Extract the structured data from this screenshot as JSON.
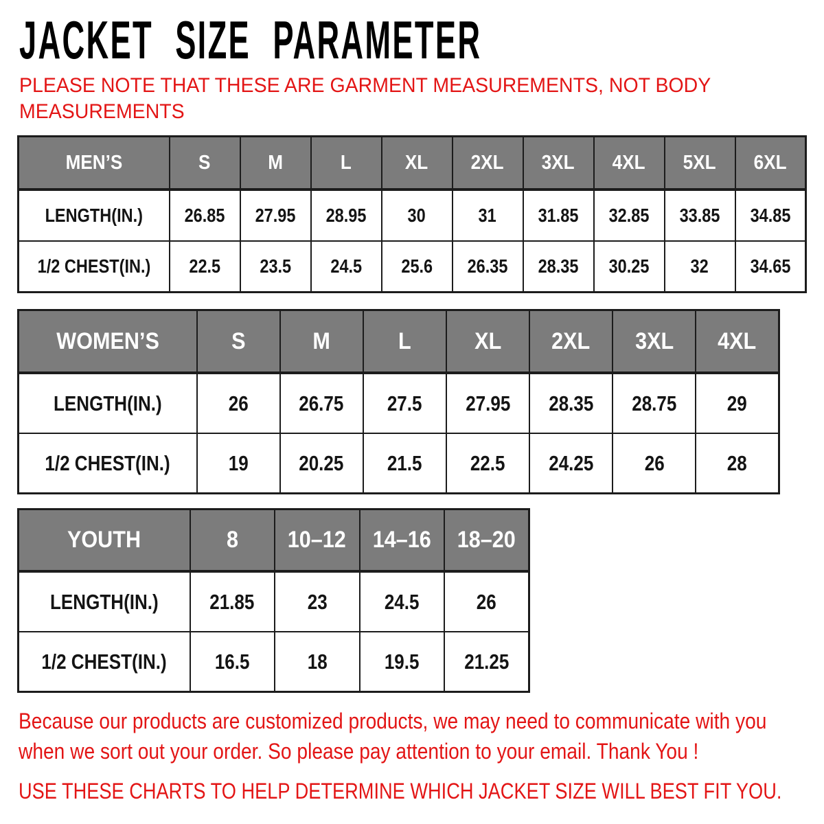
{
  "title": "JACKET SIZE PARAMETER",
  "note": {
    "line1": "PLEASE NOTE THAT THESE ARE GARMENT MEASUREMENTS, NOT BODY",
    "line2": "MEASUREMENTS"
  },
  "tables": [
    {
      "id": "mens",
      "label": "MEN’S",
      "sizes": [
        "S",
        "M",
        "L",
        "XL",
        "2XL",
        "3XL",
        "4XL",
        "5XL",
        "6XL"
      ],
      "rows": [
        {
          "label": "LENGTH(IN.)",
          "values": [
            "26.85",
            "27.95",
            "28.95",
            "30",
            "31",
            "31.85",
            "32.85",
            "33.85",
            "34.85"
          ]
        },
        {
          "label": "1/2 CHEST(IN.)",
          "values": [
            "22.5",
            "23.5",
            "24.5",
            "25.6",
            "26.35",
            "28.35",
            "30.25",
            "32",
            "34.65"
          ]
        }
      ]
    },
    {
      "id": "womens",
      "label": "WOMEN’S",
      "sizes": [
        "S",
        "M",
        "L",
        "XL",
        "2XL",
        "3XL",
        "4XL"
      ],
      "rows": [
        {
          "label": "LENGTH(IN.)",
          "values": [
            "26",
            "26.75",
            "27.5",
            "27.95",
            "28.35",
            "28.75",
            "29"
          ]
        },
        {
          "label": "1/2 CHEST(IN.)",
          "values": [
            "19",
            "20.25",
            "21.5",
            "22.5",
            "24.25",
            "26",
            "28"
          ]
        }
      ]
    },
    {
      "id": "youth",
      "label": "YOUTH",
      "sizes": [
        "8",
        "10–12",
        "14–16",
        "18–20"
      ],
      "rows": [
        {
          "label": "LENGTH(IN.)",
          "values": [
            "21.85",
            "23",
            "24.5",
            "26"
          ]
        },
        {
          "label": "1/2 CHEST(IN.)",
          "values": [
            "16.5",
            "18",
            "19.5",
            "21.25"
          ]
        }
      ]
    }
  ],
  "footer": {
    "para1_line1": "Because our products are customized products, we may need to communicate with you",
    "para1_line2": "when we sort out your order. So please pay attention to your email. Thank You !",
    "para2": "USE THESE CHARTS TO HELP DETERMINE WHICH JACKET SIZE WILL BEST FIT YOU."
  },
  "colors": {
    "accent_red": "#e31515",
    "header_gray": "#7c7c7c",
    "border_black": "#1c1c1c",
    "text_black": "#141414",
    "header_text": "#ffffff",
    "background": "#ffffff"
  }
}
